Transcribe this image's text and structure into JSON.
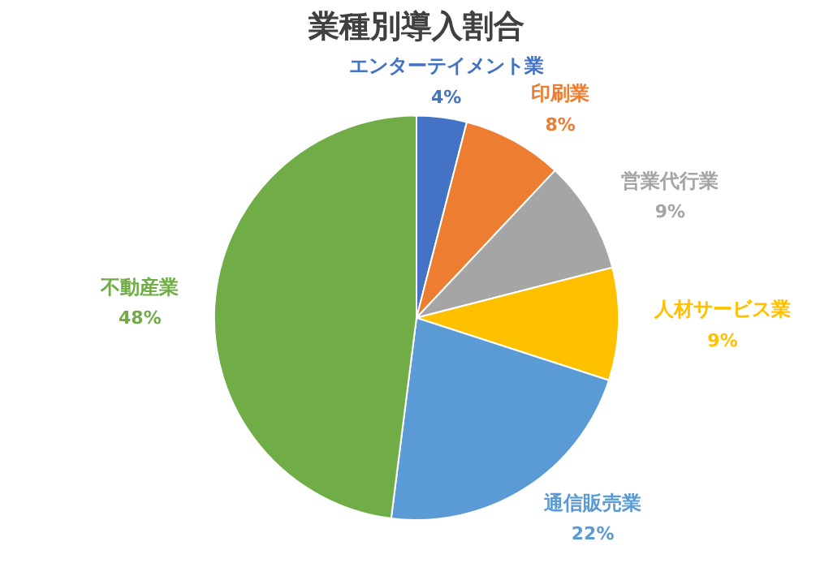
{
  "chart_data": {
    "type": "pie",
    "title": "業種別導入割合",
    "categories": [
      "エンターテイメント業",
      "印刷業",
      "営業代行業",
      "人材サービス業",
      "通信販売業",
      "不動産業"
    ],
    "values": [
      4,
      8,
      9,
      9,
      22,
      48
    ],
    "colors": [
      "#4472c4",
      "#ed7d31",
      "#a5a5a5",
      "#ffc000",
      "#5b9bd5",
      "#70ad47"
    ],
    "value_labels": [
      "4%",
      "8%",
      "9%",
      "9%",
      "22%",
      "48%"
    ],
    "legend": false
  }
}
